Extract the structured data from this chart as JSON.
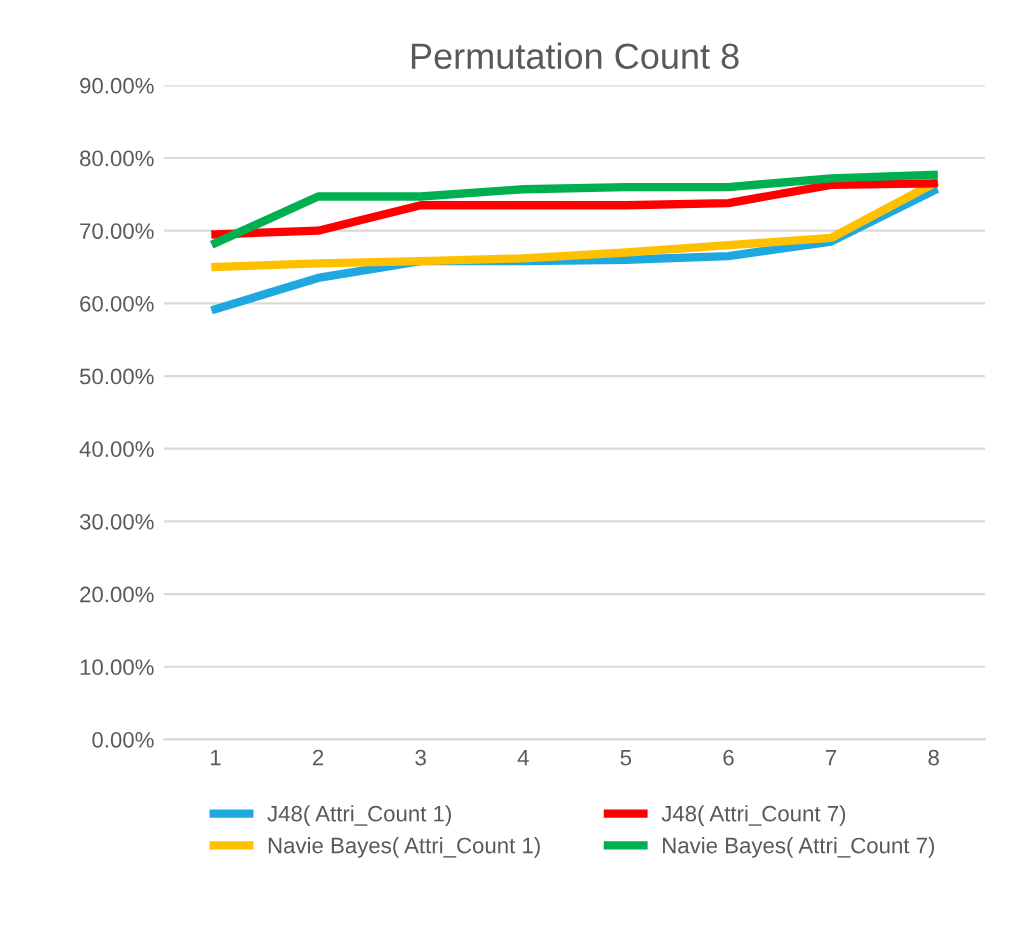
{
  "chart_data": {
    "type": "line",
    "title": "Permutation Count 8",
    "categories": [
      "1",
      "2",
      "3",
      "4",
      "5",
      "6",
      "7",
      "8"
    ],
    "series": [
      {
        "name": "J48( Attri_Count 1)",
        "color": "#1fa8e0",
        "values": [
          59.2,
          63.5,
          65.8,
          65.8,
          66.0,
          66.5,
          68.5,
          75.5
        ]
      },
      {
        "name": "Navie Bayes( Attri_Count 1)",
        "color": "#ffc000",
        "values": [
          65.0,
          65.5,
          65.8,
          66.2,
          67.0,
          68.0,
          69.0,
          76.5
        ]
      },
      {
        "name": "J48( Attri_Count 7)",
        "color": "#ff0000",
        "values": [
          69.5,
          70.0,
          73.5,
          73.5,
          73.5,
          73.8,
          76.3,
          76.5
        ]
      },
      {
        "name": "Navie Bayes( Attri_Count 7)",
        "color": "#00b050",
        "values": [
          68.3,
          74.7,
          74.7,
          75.7,
          76.0,
          76.0,
          77.2,
          77.7
        ]
      }
    ],
    "ylim": [
      0,
      90
    ],
    "yticks": [
      {
        "value": 0,
        "label": "0.00%"
      },
      {
        "value": 10,
        "label": "10.00%"
      },
      {
        "value": 20,
        "label": "20.00%"
      },
      {
        "value": 30,
        "label": "30.00%"
      },
      {
        "value": 40,
        "label": "40.00%"
      },
      {
        "value": 50,
        "label": "50.00%"
      },
      {
        "value": 60,
        "label": "60.00%"
      },
      {
        "value": 70,
        "label": "70.00%"
      },
      {
        "value": 80,
        "label": "80.00%"
      },
      {
        "value": 90,
        "label": "90.00%"
      }
    ],
    "grid": "y",
    "legend": "bottom",
    "marker": "none",
    "line_style": "solid"
  }
}
